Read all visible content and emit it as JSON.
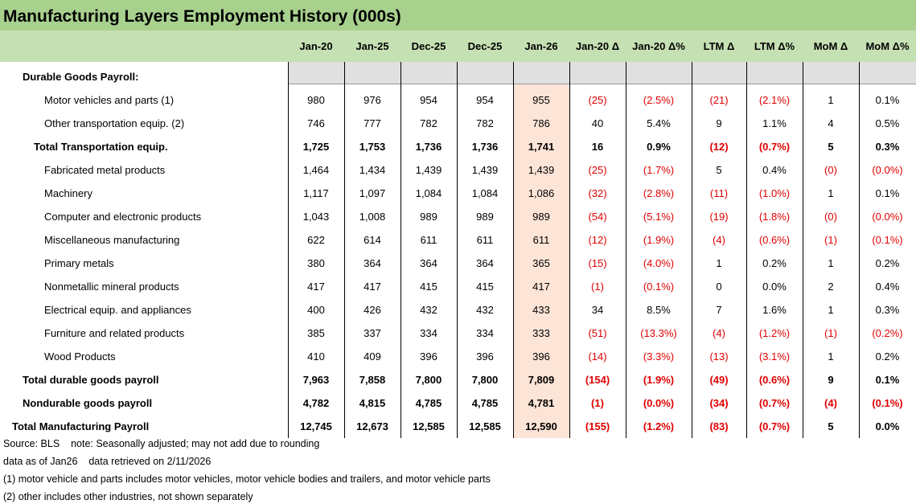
{
  "header": {
    "title": "Manufacturing Layers Employment History (000s)"
  },
  "table": {
    "columns": [
      "Jan-20",
      "Jan-25",
      "Dec-25",
      "Dec-25",
      "Jan-26",
      "Jan-20 Δ",
      "Jan-20 Δ%",
      "LTM Δ",
      "LTM Δ%",
      "MoM Δ",
      "MoM Δ%"
    ],
    "section": "Durable Goods Payroll:",
    "rows": [
      {
        "label": "Motor vehicles and parts (1)",
        "values": [
          "980",
          "976",
          "954",
          "954",
          "955",
          "(25)",
          "(2.5%)",
          "(21)",
          "(2.1%)",
          "1",
          "0.1%"
        ]
      },
      {
        "label": "Other transportation equip. (2)",
        "values": [
          "746",
          "777",
          "782",
          "782",
          "786",
          "40",
          "5.4%",
          "9",
          "1.1%",
          "4",
          "0.5%"
        ]
      },
      {
        "label": "Total Transportation equip.",
        "values": [
          "1,725",
          "1,753",
          "1,736",
          "1,736",
          "1,741",
          "16",
          "0.9%",
          "(12)",
          "(0.7%)",
          "5",
          "0.3%"
        ]
      },
      {
        "label": "Fabricated metal products",
        "values": [
          "1,464",
          "1,434",
          "1,439",
          "1,439",
          "1,439",
          "(25)",
          "(1.7%)",
          "5",
          "0.4%",
          "(0)",
          "(0.0%)"
        ]
      },
      {
        "label": "Machinery",
        "values": [
          "1,117",
          "1,097",
          "1,084",
          "1,084",
          "1,086",
          "(32)",
          "(2.8%)",
          "(11)",
          "(1.0%)",
          "1",
          "0.1%"
        ]
      },
      {
        "label": "Computer and electronic products",
        "values": [
          "1,043",
          "1,008",
          "989",
          "989",
          "989",
          "(54)",
          "(5.1%)",
          "(19)",
          "(1.8%)",
          "(0)",
          "(0.0%)"
        ]
      },
      {
        "label": "Miscellaneous manufacturing",
        "values": [
          "622",
          "614",
          "611",
          "611",
          "611",
          "(12)",
          "(1.9%)",
          "(4)",
          "(0.6%)",
          "(1)",
          "(0.1%)"
        ]
      },
      {
        "label": "Primary metals",
        "values": [
          "380",
          "364",
          "364",
          "364",
          "365",
          "(15)",
          "(4.0%)",
          "1",
          "0.2%",
          "1",
          "0.2%"
        ]
      },
      {
        "label": "Nonmetallic mineral products",
        "values": [
          "417",
          "417",
          "415",
          "415",
          "417",
          "(1)",
          "(0.1%)",
          "0",
          "0.0%",
          "2",
          "0.4%"
        ]
      },
      {
        "label": "Electrical equip. and appliances",
        "values": [
          "400",
          "426",
          "432",
          "432",
          "433",
          "34",
          "8.5%",
          "7",
          "1.6%",
          "1",
          "0.3%"
        ]
      },
      {
        "label": "Furniture and related products",
        "values": [
          "385",
          "337",
          "334",
          "334",
          "333",
          "(51)",
          "(13.3%)",
          "(4)",
          "(1.2%)",
          "(1)",
          "(0.2%)"
        ]
      },
      {
        "label": "Wood Products",
        "values": [
          "410",
          "409",
          "396",
          "396",
          "396",
          "(14)",
          "(3.3%)",
          "(13)",
          "(3.1%)",
          "1",
          "0.2%"
        ]
      },
      {
        "label": "Total durable goods payroll",
        "values": [
          "7,963",
          "7,858",
          "7,800",
          "7,800",
          "7,809",
          "(154)",
          "(1.9%)",
          "(49)",
          "(0.6%)",
          "9",
          "0.1%"
        ]
      },
      {
        "label": "Nondurable goods payroll",
        "values": [
          "4,782",
          "4,815",
          "4,785",
          "4,785",
          "4,781",
          "(1)",
          "(0.0%)",
          "(34)",
          "(0.7%)",
          "(4)",
          "(0.1%)"
        ]
      },
      {
        "label": "Total Manufacturing Payroll",
        "values": [
          "12,745",
          "12,673",
          "12,585",
          "12,585",
          "12,590",
          "(155)",
          "(1.2%)",
          "(83)",
          "(0.7%)",
          "5",
          "0.0%"
        ]
      }
    ]
  },
  "footer": [
    "Source: BLS    note: Seasonally adjusted; may not add due to rounding",
    "data as of Jan26    data retrieved on 2/11/2026",
    "(1) motor vehicle and parts includes motor vehicles, motor vehicle bodies and trailers, and motor vehicle parts",
    "(2) other includes other industries, not shown separately"
  ]
}
